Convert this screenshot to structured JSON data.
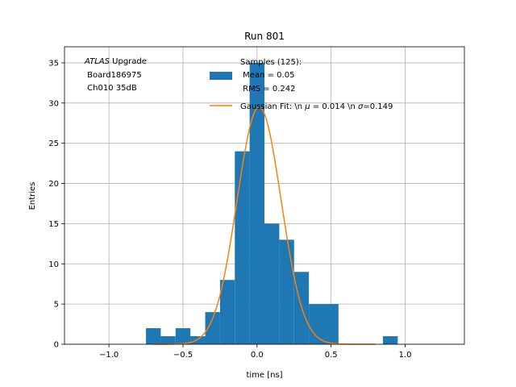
{
  "chart_data": {
    "type": "bar",
    "title": "Run 801",
    "xlabel": "time [ns]",
    "ylabel": "Entries",
    "xlim": [
      -1.3,
      1.4
    ],
    "ylim": [
      0,
      37
    ],
    "grid": true,
    "xticks": [
      -1.0,
      -0.5,
      0.0,
      0.5,
      1.0
    ],
    "xtick_labels": [
      "−1.0",
      "−0.5",
      "0.0",
      "0.5",
      "1.0"
    ],
    "yticks": [
      0,
      5,
      10,
      15,
      20,
      25,
      30,
      35
    ],
    "ytick_labels": [
      "0",
      "5",
      "10",
      "15",
      "20",
      "25",
      "30",
      "35"
    ],
    "annotation": {
      "italic": "ATLAS",
      "line1_rest": " Upgrade",
      "line2": " Board186975",
      "line3": " Ch010 35dB"
    },
    "legend": {
      "placement": "top-right",
      "hist_line1": "Samples (125):",
      "hist_line2": " Mean = 0.05",
      "hist_line3": " RMS = 0.242",
      "fit_prefix": "Gaussian Fit: \\n ",
      "fit_mu_symbol": "μ",
      "fit_mu_text": " = 0.014 \\n ",
      "fit_sigma_symbol": "σ",
      "fit_sigma_text": "=0.149"
    },
    "colors": {
      "histogram": "#1f77b4",
      "fit": "#ff7f0e",
      "grid": "#b0b0b0"
    },
    "histogram": {
      "bin_edges": [
        -0.75,
        -0.65,
        -0.55,
        -0.45,
        -0.35,
        -0.25,
        -0.15,
        -0.05,
        0.05,
        0.15,
        0.25,
        0.35,
        0.45,
        0.55,
        0.65,
        0.75,
        0.85,
        0.95
      ],
      "counts": [
        2,
        1,
        2,
        1,
        4,
        8,
        24,
        35,
        15,
        13,
        9,
        5,
        5,
        0,
        0,
        0,
        1
      ]
    },
    "fit": {
      "amplitude": 29.5,
      "mu": 0.014,
      "sigma": 0.149,
      "x_range": [
        -0.7,
        0.8
      ]
    }
  }
}
